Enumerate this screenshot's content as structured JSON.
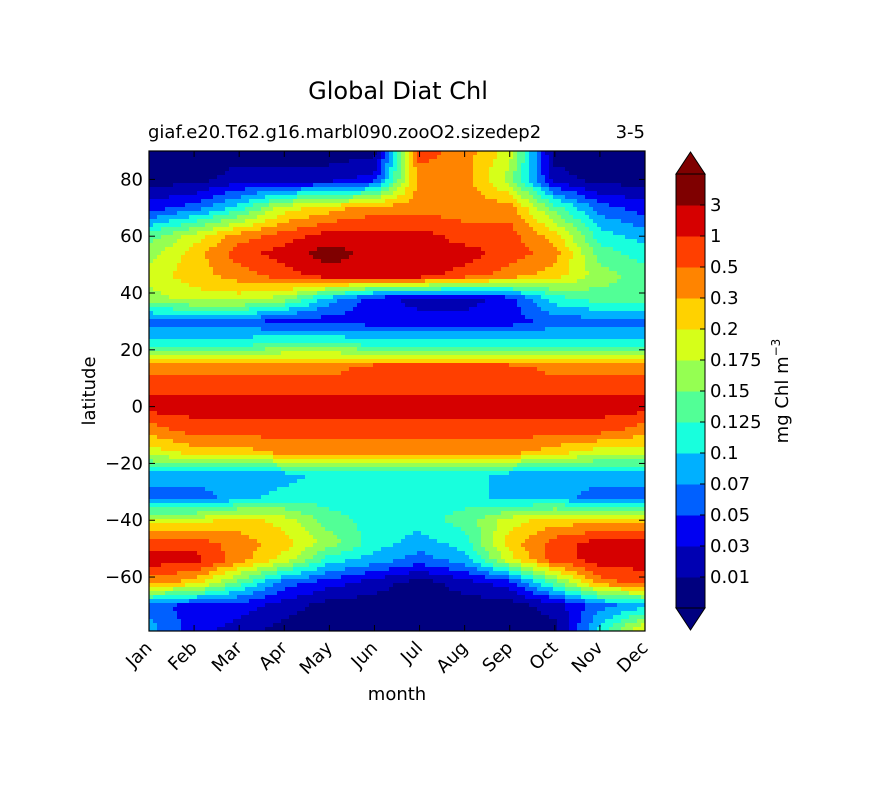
{
  "chart_data": {
    "type": "heatmap",
    "subtype": "filled-contour",
    "title": "Global Diat Chl",
    "subtitle_left": "giaf.e20.T62.g16.marbl090.zooO2.sizedep2",
    "subtitle_right": "3-5",
    "xlabel": "month",
    "ylabel": "latitude",
    "x_categories": [
      "Jan",
      "Feb",
      "Mar",
      "Apr",
      "May",
      "Jun",
      "Jul",
      "Aug",
      "Sep",
      "Oct",
      "Nov",
      "Dec"
    ],
    "x_range": [
      1,
      12
    ],
    "y_ticks": [
      80,
      60,
      40,
      20,
      0,
      -20,
      -40,
      -60
    ],
    "y_range": [
      -79,
      90
    ],
    "grid": false,
    "colorbar": {
      "label": "mg Chl m",
      "label_exponent": "−3",
      "levels": [
        "0.01",
        "0.03",
        "0.05",
        "0.07",
        "0.1",
        "0.125",
        "0.15",
        "0.175",
        "0.2",
        "0.3",
        "0.5",
        "1",
        "3"
      ],
      "colors": [
        "#00007f",
        "#0000b2",
        "#0000f2",
        "#0060ff",
        "#00b0ff",
        "#18ffdd",
        "#52ff96",
        "#95ff52",
        "#d6ff19",
        "#ffd200",
        "#ff8400",
        "#ff3f00",
        "#d60000",
        "#7f0000"
      ],
      "extend": "both"
    },
    "field_class_by_latitude": [
      {
        "lat": 90,
        "class": [
          0,
          0,
          0,
          0,
          0,
          0,
          11,
          10,
          8,
          0,
          0,
          0
        ]
      },
      {
        "lat": 80,
        "class": [
          0,
          0,
          1,
          1,
          1,
          2,
          10,
          10,
          7,
          1,
          0,
          0
        ]
      },
      {
        "lat": 70,
        "class": [
          2,
          3,
          5,
          8,
          9,
          10,
          10,
          10,
          10,
          6,
          3,
          2
        ]
      },
      {
        "lat": 60,
        "class": [
          6,
          8,
          10,
          11,
          12,
          12,
          12,
          11,
          11,
          9,
          5,
          4
        ]
      },
      {
        "lat": 54,
        "class": [
          7,
          9,
          11,
          12,
          13,
          12,
          12,
          12,
          11,
          10,
          6,
          5
        ]
      },
      {
        "lat": 46,
        "class": [
          8,
          9,
          10,
          11,
          12,
          12,
          12,
          11,
          10,
          9,
          7,
          6
        ]
      },
      {
        "lat": 38,
        "class": [
          7,
          8,
          8,
          7,
          4,
          2,
          1,
          1,
          2,
          5,
          6,
          6
        ]
      },
      {
        "lat": 30,
        "class": [
          3,
          3,
          3,
          2,
          2,
          2,
          2,
          2,
          2,
          3,
          3,
          3
        ]
      },
      {
        "lat": 22,
        "class": [
          5,
          5,
          5,
          6,
          6,
          5,
          5,
          5,
          5,
          5,
          5,
          5
        ]
      },
      {
        "lat": 14,
        "class": [
          10,
          10,
          10,
          10,
          10,
          11,
          11,
          11,
          11,
          10,
          10,
          10
        ]
      },
      {
        "lat": 8,
        "class": [
          11,
          11,
          11,
          11,
          11,
          11,
          11,
          11,
          11,
          11,
          11,
          11
        ]
      },
      {
        "lat": 0,
        "class": [
          12,
          12,
          12,
          12,
          12,
          12,
          12,
          12,
          12,
          12,
          12,
          12
        ]
      },
      {
        "lat": -8,
        "class": [
          10,
          11,
          11,
          11,
          11,
          11,
          11,
          11,
          11,
          11,
          11,
          10
        ]
      },
      {
        "lat": -16,
        "class": [
          8,
          9,
          9,
          10,
          10,
          10,
          10,
          10,
          10,
          9,
          8,
          8
        ]
      },
      {
        "lat": -24,
        "class": [
          4,
          4,
          4,
          4,
          5,
          5,
          5,
          5,
          4,
          4,
          4,
          4
        ]
      },
      {
        "lat": -32,
        "class": [
          3,
          3,
          4,
          5,
          5,
          5,
          5,
          5,
          4,
          4,
          3,
          3
        ]
      },
      {
        "lat": -40,
        "class": [
          8,
          8,
          9,
          8,
          6,
          5,
          5,
          6,
          8,
          9,
          9,
          9
        ]
      },
      {
        "lat": -48,
        "class": [
          11,
          11,
          10,
          9,
          7,
          5,
          4,
          5,
          9,
          11,
          12,
          12
        ]
      },
      {
        "lat": -54,
        "class": [
          12,
          12,
          10,
          8,
          5,
          4,
          3,
          4,
          8,
          11,
          12,
          12
        ]
      },
      {
        "lat": -62,
        "class": [
          10,
          9,
          6,
          3,
          2,
          1,
          0,
          1,
          2,
          6,
          10,
          11
        ]
      },
      {
        "lat": -70,
        "class": [
          3,
          2,
          2,
          1,
          0,
          0,
          0,
          0,
          0,
          1,
          3,
          4
        ]
      },
      {
        "lat": -79,
        "class": [
          4,
          2,
          1,
          0,
          0,
          0,
          0,
          0,
          0,
          0,
          5,
          9
        ]
      }
    ]
  }
}
